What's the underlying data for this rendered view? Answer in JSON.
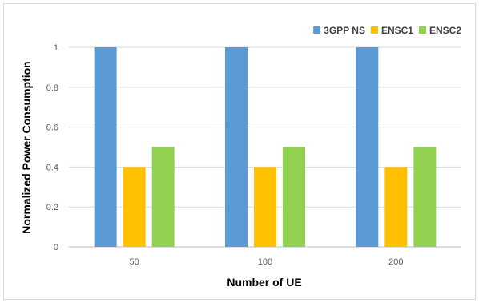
{
  "chart_data": {
    "type": "bar",
    "categories": [
      "50",
      "100",
      "200"
    ],
    "series": [
      {
        "name": "3GPP NS",
        "values": [
          1,
          1,
          1
        ],
        "color": "#5b9bd5"
      },
      {
        "name": "ENSC1",
        "values": [
          0.4,
          0.4,
          0.4
        ],
        "color": "#ffc000"
      },
      {
        "name": "ENSC2",
        "values": [
          0.5,
          0.5,
          0.5
        ],
        "color": "#92d050"
      }
    ],
    "title": "",
    "xlabel": "Number of UE",
    "ylabel": "Normalized Power Consumption",
    "ylim": [
      0,
      1
    ],
    "yticks": [
      "0",
      "0.2",
      "0.4",
      "0.6",
      "0.8",
      "1"
    ],
    "grid": true,
    "legend_position": "top-right"
  }
}
